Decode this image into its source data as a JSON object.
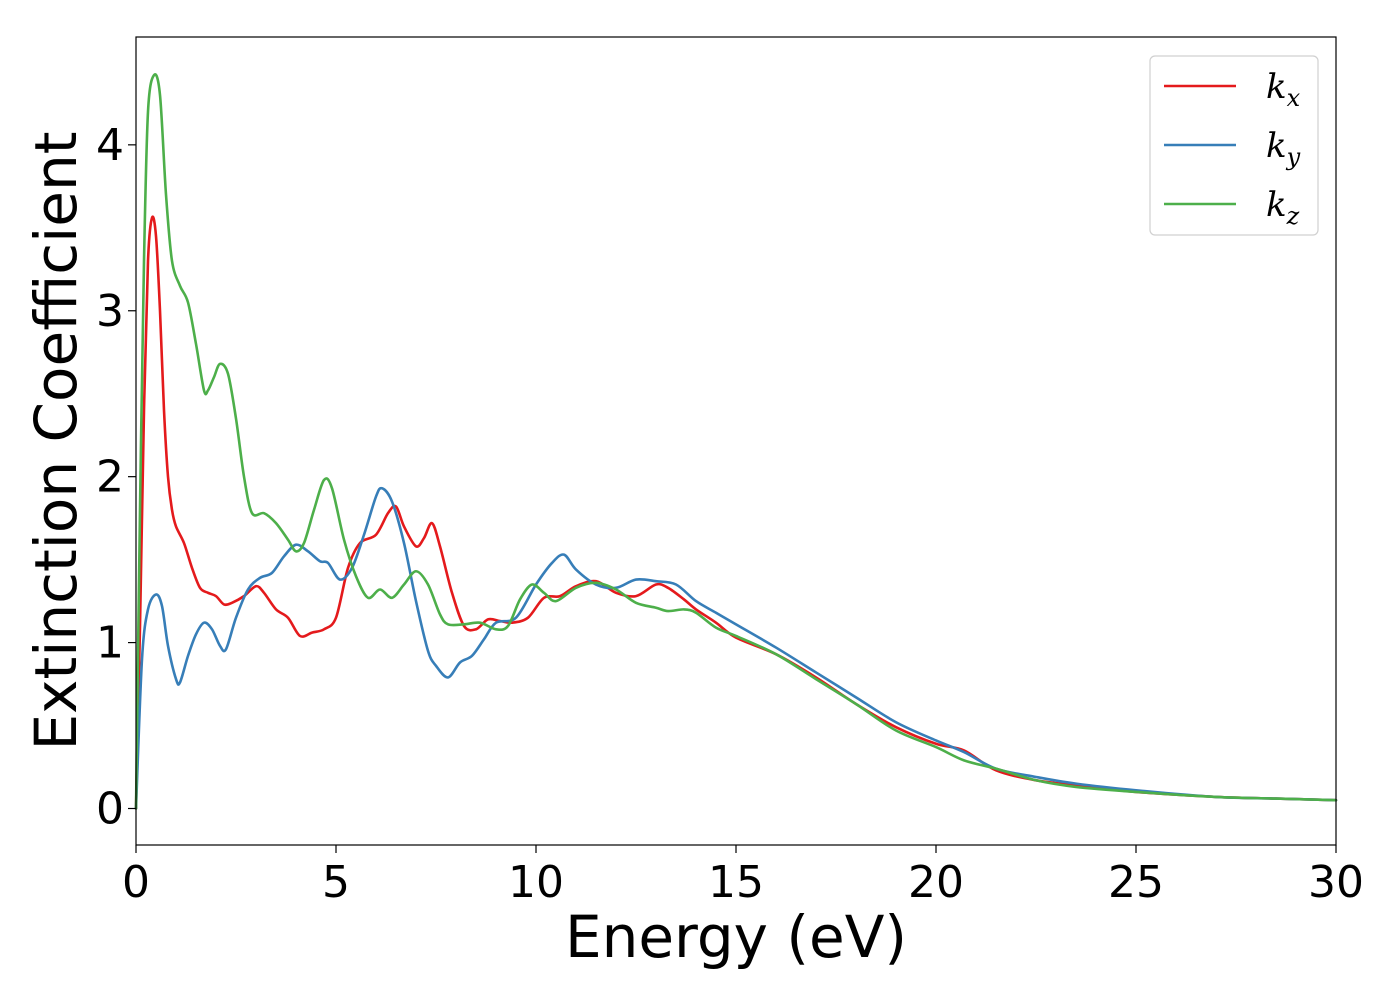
{
  "chart_data": {
    "type": "line",
    "title": "",
    "xlabel": "Energy (eV)",
    "ylabel": "Extinction Coefficient",
    "xlim": [
      0,
      30
    ],
    "ylim": [
      -0.22,
      4.65
    ],
    "xticks": [
      0,
      5,
      10,
      15,
      20,
      25,
      30
    ],
    "yticks": [
      0,
      1,
      2,
      3,
      4
    ],
    "grid": false,
    "legend_position": "top-right",
    "series": [
      {
        "name": "k_x",
        "label_main": "k",
        "label_sub": "x",
        "color": "#e41a1c",
        "x": [
          0,
          0.1,
          0.2,
          0.3,
          0.4,
          0.5,
          0.6,
          0.7,
          0.8,
          0.9,
          1.0,
          1.2,
          1.4,
          1.6,
          1.8,
          2.0,
          2.2,
          2.4,
          2.7,
          3.0,
          3.2,
          3.5,
          3.8,
          4.1,
          4.4,
          4.7,
          5.0,
          5.3,
          5.6,
          6.0,
          6.3,
          6.5,
          6.7,
          7.0,
          7.2,
          7.4,
          7.6,
          7.9,
          8.2,
          8.5,
          8.8,
          9.1,
          9.4,
          9.8,
          10.2,
          10.6,
          11.0,
          11.5,
          12.0,
          12.5,
          13.0,
          13.3,
          13.7,
          14.0,
          14.5,
          15.0,
          16.0,
          17.0,
          18.0,
          19.0,
          20.0,
          20.7,
          21.5,
          22.5,
          23.5,
          25.0,
          27.0,
          28.5,
          30.0
        ],
        "values": [
          0,
          1.1,
          2.4,
          3.3,
          3.56,
          3.45,
          3.0,
          2.4,
          2.0,
          1.8,
          1.7,
          1.6,
          1.45,
          1.33,
          1.3,
          1.28,
          1.23,
          1.24,
          1.28,
          1.34,
          1.3,
          1.2,
          1.15,
          1.04,
          1.06,
          1.08,
          1.15,
          1.45,
          1.6,
          1.65,
          1.78,
          1.82,
          1.7,
          1.58,
          1.63,
          1.72,
          1.58,
          1.3,
          1.1,
          1.08,
          1.14,
          1.13,
          1.12,
          1.15,
          1.27,
          1.28,
          1.34,
          1.37,
          1.3,
          1.28,
          1.35,
          1.33,
          1.26,
          1.2,
          1.12,
          1.03,
          0.93,
          0.79,
          0.63,
          0.49,
          0.39,
          0.35,
          0.23,
          0.17,
          0.14,
          0.1,
          0.07,
          0.06,
          0.05
        ]
      },
      {
        "name": "k_y",
        "label_main": "k",
        "label_sub": "y",
        "color": "#377eb8",
        "x": [
          0,
          0.15,
          0.3,
          0.5,
          0.65,
          0.8,
          1.0,
          1.1,
          1.3,
          1.5,
          1.7,
          1.9,
          2.1,
          2.25,
          2.5,
          2.8,
          3.1,
          3.4,
          3.7,
          4.0,
          4.3,
          4.6,
          4.8,
          5.1,
          5.4,
          5.7,
          6.0,
          6.15,
          6.4,
          6.7,
          7.0,
          7.3,
          7.5,
          7.8,
          8.1,
          8.4,
          8.7,
          9.0,
          9.5,
          10.0,
          10.4,
          10.7,
          11.0,
          11.5,
          12.0,
          12.5,
          13.0,
          13.5,
          14.0,
          14.5,
          15.0,
          16.0,
          17.0,
          18.0,
          19.0,
          20.0,
          20.7,
          21.5,
          22.5,
          23.5,
          25.0,
          27.0,
          28.5,
          30.0
        ],
        "values": [
          0,
          0.9,
          1.2,
          1.29,
          1.22,
          0.98,
          0.78,
          0.76,
          0.92,
          1.05,
          1.12,
          1.08,
          0.98,
          0.96,
          1.15,
          1.32,
          1.39,
          1.42,
          1.52,
          1.59,
          1.55,
          1.49,
          1.48,
          1.38,
          1.45,
          1.65,
          1.88,
          1.93,
          1.85,
          1.6,
          1.25,
          0.95,
          0.86,
          0.79,
          0.88,
          0.92,
          1.02,
          1.12,
          1.15,
          1.35,
          1.48,
          1.53,
          1.44,
          1.35,
          1.33,
          1.38,
          1.37,
          1.35,
          1.25,
          1.18,
          1.11,
          0.97,
          0.82,
          0.67,
          0.52,
          0.41,
          0.34,
          0.24,
          0.19,
          0.15,
          0.11,
          0.07,
          0.06,
          0.05
        ]
      },
      {
        "name": "k_z",
        "label_main": "k",
        "label_sub": "z",
        "color": "#4daf4a",
        "x": [
          0,
          0.1,
          0.2,
          0.3,
          0.45,
          0.6,
          0.75,
          0.9,
          1.1,
          1.3,
          1.5,
          1.7,
          1.8,
          1.95,
          2.1,
          2.3,
          2.5,
          2.7,
          2.9,
          3.2,
          3.5,
          3.8,
          4.0,
          4.2,
          4.45,
          4.7,
          4.9,
          5.2,
          5.5,
          5.8,
          6.1,
          6.4,
          6.7,
          7.0,
          7.3,
          7.6,
          7.8,
          8.2,
          8.6,
          9.0,
          9.3,
          9.6,
          9.9,
          10.2,
          10.5,
          11.0,
          11.5,
          12.0,
          12.5,
          13.0,
          13.3,
          13.7,
          14.0,
          14.5,
          15.0,
          16.0,
          17.0,
          18.0,
          19.0,
          20.0,
          20.7,
          21.5,
          22.5,
          23.5,
          25.0,
          27.0,
          28.5,
          30.0
        ],
        "values": [
          0,
          1.8,
          3.3,
          4.2,
          4.42,
          4.3,
          3.7,
          3.3,
          3.15,
          3.05,
          2.8,
          2.52,
          2.52,
          2.6,
          2.68,
          2.62,
          2.35,
          2.0,
          1.78,
          1.78,
          1.72,
          1.62,
          1.55,
          1.6,
          1.8,
          1.98,
          1.93,
          1.62,
          1.4,
          1.27,
          1.32,
          1.27,
          1.35,
          1.43,
          1.35,
          1.17,
          1.11,
          1.11,
          1.12,
          1.08,
          1.1,
          1.26,
          1.35,
          1.3,
          1.25,
          1.33,
          1.36,
          1.32,
          1.24,
          1.21,
          1.19,
          1.2,
          1.18,
          1.09,
          1.04,
          0.93,
          0.78,
          0.63,
          0.47,
          0.37,
          0.29,
          0.24,
          0.17,
          0.13,
          0.1,
          0.07,
          0.06,
          0.05
        ]
      }
    ]
  }
}
